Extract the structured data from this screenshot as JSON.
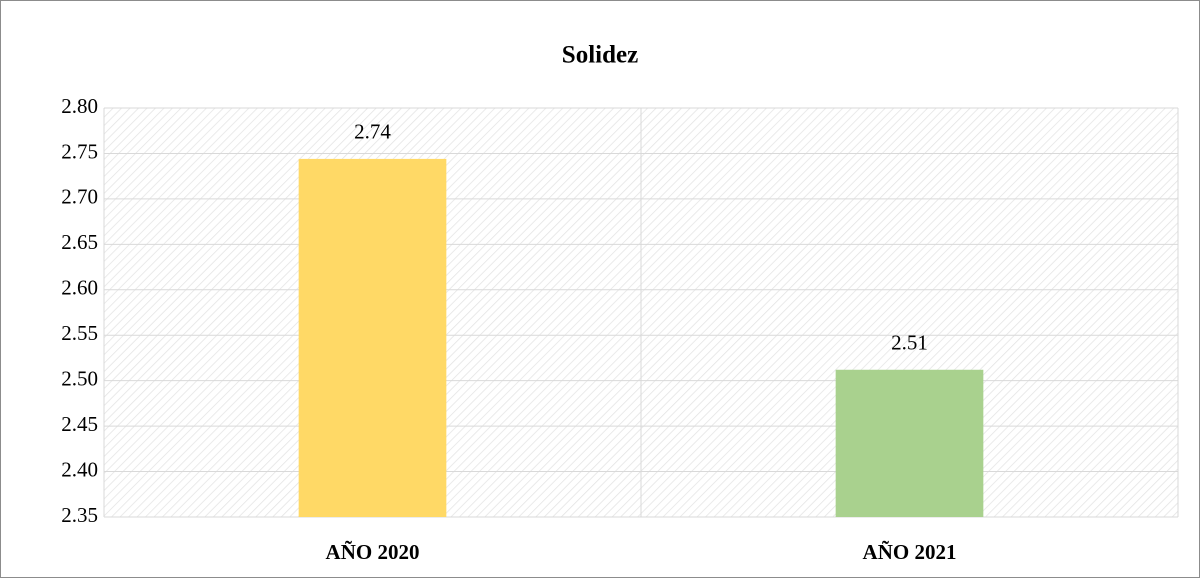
{
  "chart_data": {
    "type": "bar",
    "title": "Solidez",
    "categories": [
      "AÑO 2020",
      "AÑO 2021"
    ],
    "values": [
      2.744,
      2.512
    ],
    "value_labels": [
      "2.74",
      "2.51"
    ],
    "colors": [
      "#ffd966",
      "#a9d18e"
    ],
    "ylim": [
      2.35,
      2.8
    ],
    "yticks": [
      2.35,
      {
        "value": 2.4,
        "label": "2.40"
      },
      2.45,
      {
        "value": 2.5,
        "label": "2.50"
      },
      2.55,
      {
        "value": 2.6,
        "label": "2.60"
      },
      2.65,
      {
        "value": 2.7,
        "label": "2.70"
      },
      2.75,
      {
        "value": 2.8,
        "label": "2.80"
      }
    ],
    "grid": true
  }
}
